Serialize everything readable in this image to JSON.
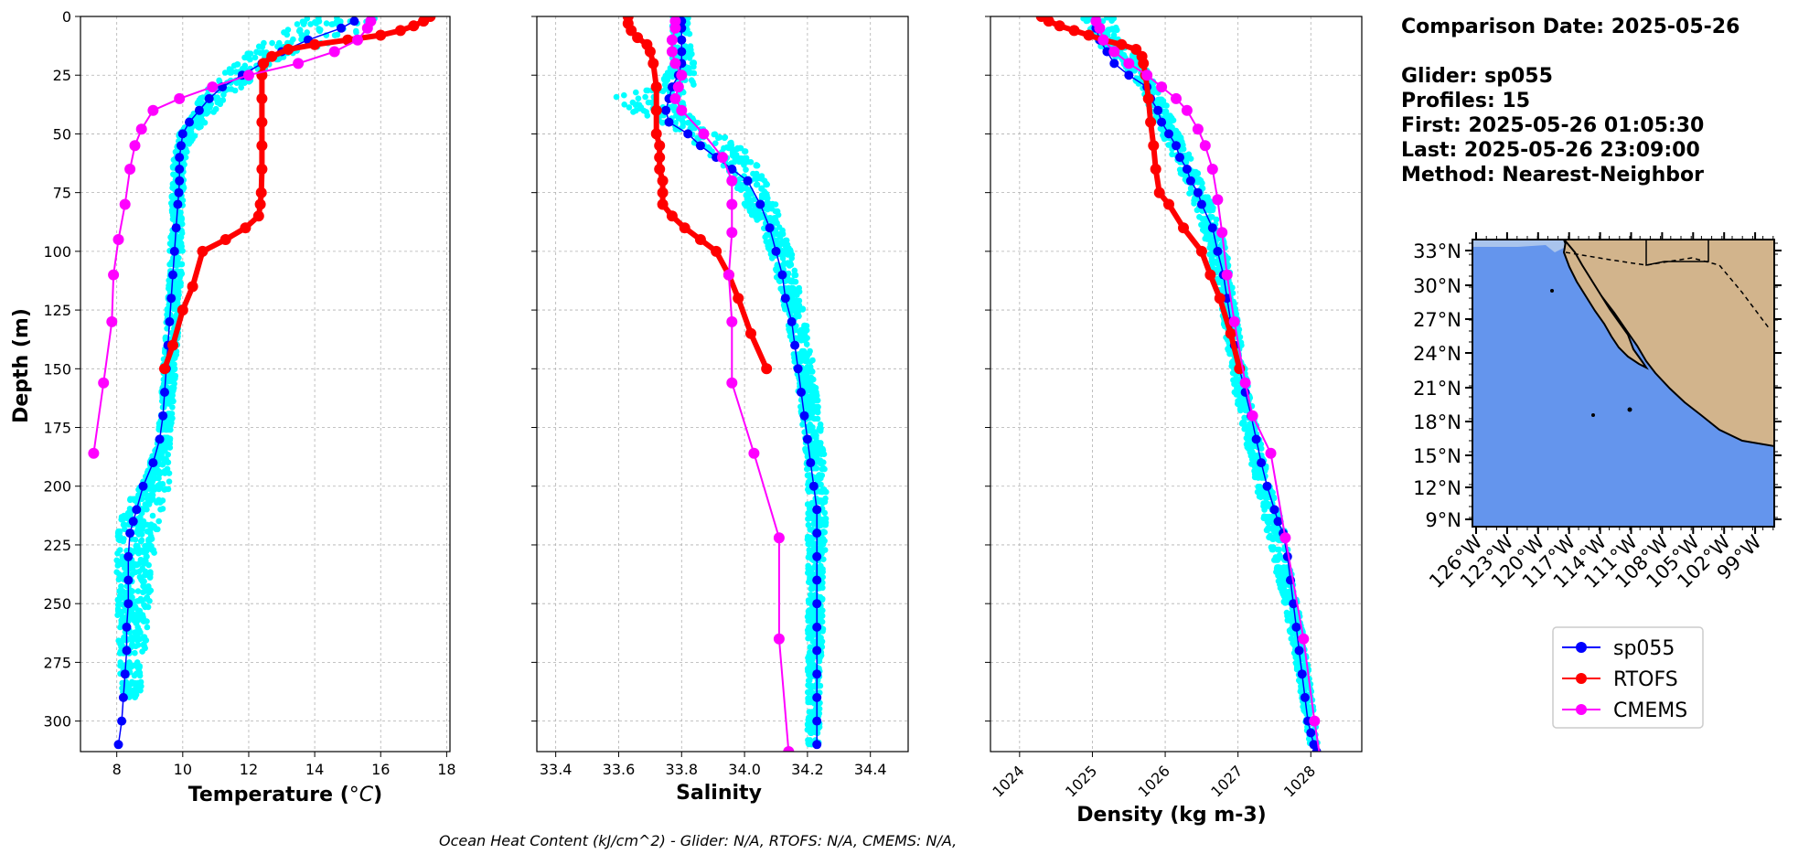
{
  "chart_data": [
    {
      "type": "line",
      "xlabel": "Temperature (°C)",
      "ylabel": "Depth (m)",
      "xlim": [
        6.9,
        18.1
      ],
      "ylim": [
        313,
        0
      ],
      "xticks": [
        8,
        10,
        12,
        14,
        16,
        18
      ],
      "yticks": [
        0,
        25,
        50,
        75,
        100,
        125,
        150,
        175,
        200,
        225,
        250,
        275,
        300
      ],
      "grid": true,
      "scatter": {
        "name": "sp055 profiles",
        "color": "#00ffff",
        "bands": [
          [
            0,
            13.8,
            15.9
          ],
          [
            5,
            13.0,
            15.8
          ],
          [
            10,
            12.6,
            14.8
          ],
          [
            15,
            12.0,
            13.6
          ],
          [
            20,
            11.6,
            12.8
          ],
          [
            25,
            11.2,
            12.3
          ],
          [
            30,
            10.8,
            11.8
          ],
          [
            35,
            10.5,
            11.4
          ],
          [
            40,
            10.3,
            11.0
          ],
          [
            45,
            10.1,
            10.7
          ],
          [
            50,
            9.9,
            10.4
          ],
          [
            55,
            9.8,
            10.2
          ],
          [
            60,
            9.7,
            10.1
          ],
          [
            70,
            9.7,
            10.05
          ],
          [
            80,
            9.65,
            10.0
          ],
          [
            90,
            9.65,
            10.0
          ],
          [
            100,
            9.6,
            10.0
          ],
          [
            120,
            9.55,
            9.95
          ],
          [
            140,
            9.45,
            9.85
          ],
          [
            160,
            9.35,
            9.75
          ],
          [
            180,
            9.25,
            9.65
          ],
          [
            190,
            9.0,
            9.6
          ],
          [
            200,
            8.6,
            9.6
          ],
          [
            210,
            8.2,
            9.4
          ],
          [
            220,
            8.0,
            9.25
          ],
          [
            235,
            8.0,
            9.1
          ],
          [
            250,
            8.0,
            9.0
          ],
          [
            265,
            8.05,
            8.9
          ],
          [
            280,
            8.1,
            8.8
          ],
          [
            290,
            8.2,
            8.7
          ]
        ]
      },
      "series": [
        {
          "name": "sp055",
          "color": "#0000ff",
          "lw": 1.5,
          "ms": 5,
          "x": [
            15.2,
            14.8,
            13.8,
            13.0,
            12.4,
            11.8,
            11.2,
            10.8,
            10.5,
            10.2,
            10.0,
            9.95,
            9.9,
            9.9,
            9.9,
            9.88,
            9.85,
            9.8,
            9.75,
            9.7,
            9.65,
            9.6,
            9.55,
            9.5,
            9.45,
            9.4,
            9.3,
            9.1,
            8.8,
            8.6,
            8.5,
            8.4,
            8.35,
            8.35,
            8.35,
            8.3,
            8.3,
            8.25,
            8.2,
            8.15,
            8.05
          ],
          "y": [
            2,
            5,
            10,
            15,
            20,
            25,
            30,
            35,
            40,
            45,
            50,
            55,
            60,
            65,
            70,
            75,
            80,
            90,
            100,
            110,
            120,
            130,
            140,
            150,
            160,
            170,
            180,
            190,
            200,
            210,
            215,
            220,
            230,
            240,
            250,
            260,
            270,
            280,
            290,
            300,
            310
          ]
        },
        {
          "name": "RTOFS",
          "color": "#ff0000",
          "lw": 6,
          "ms": 6,
          "x": [
            17.5,
            17.3,
            17.0,
            16.6,
            16.0,
            15.0,
            14.0,
            13.2,
            12.7,
            12.45,
            12.4,
            12.4,
            12.4,
            12.4,
            12.4,
            12.38,
            12.35,
            12.3,
            11.9,
            11.3,
            10.6,
            10.3,
            10.0,
            9.7,
            9.45
          ],
          "y": [
            0,
            2,
            4,
            6,
            8,
            10,
            12,
            14,
            17,
            20,
            25,
            35,
            45,
            55,
            65,
            75,
            80,
            85,
            90,
            95,
            100,
            115,
            125,
            140,
            150
          ]
        },
        {
          "name": "CMEMS",
          "color": "#ff00ff",
          "lw": 2,
          "ms": 6,
          "x": [
            15.7,
            15.6,
            15.3,
            14.6,
            13.5,
            12.0,
            10.9,
            9.9,
            9.1,
            8.75,
            8.55,
            8.4,
            8.25,
            8.05,
            7.9,
            7.85,
            7.6,
            7.3
          ],
          "y": [
            2,
            5,
            10,
            15,
            20,
            25,
            30,
            35,
            40,
            48,
            55,
            65,
            80,
            95,
            110,
            130,
            156,
            186
          ]
        }
      ]
    },
    {
      "type": "line",
      "xlabel": "Salinity",
      "xlim": [
        33.34,
        34.52
      ],
      "ylim": [
        313,
        0
      ],
      "xticks": [
        33.4,
        33.6,
        33.8,
        34.0,
        34.2,
        34.4
      ],
      "xticklabels": [
        "33.4",
        "33.6",
        "33.8",
        "34.0",
        "34.2",
        "34.4"
      ],
      "grid": true,
      "scatter": {
        "name": "sp055 profiles",
        "color": "#00ffff",
        "bands": [
          [
            0,
            33.77,
            33.82
          ],
          [
            10,
            33.77,
            33.83
          ],
          [
            20,
            33.77,
            33.84
          ],
          [
            30,
            33.73,
            33.84
          ],
          [
            35,
            33.57,
            33.8
          ],
          [
            40,
            33.62,
            33.82
          ],
          [
            45,
            33.73,
            33.86
          ],
          [
            50,
            33.78,
            33.92
          ],
          [
            55,
            33.84,
            34.0
          ],
          [
            60,
            33.9,
            34.03
          ],
          [
            70,
            33.96,
            34.07
          ],
          [
            80,
            34.0,
            34.1
          ],
          [
            90,
            34.05,
            34.12
          ],
          [
            100,
            34.08,
            34.15
          ],
          [
            120,
            34.12,
            34.18
          ],
          [
            140,
            34.15,
            34.21
          ],
          [
            160,
            34.17,
            34.23
          ],
          [
            180,
            34.19,
            34.25
          ],
          [
            200,
            34.2,
            34.26
          ],
          [
            220,
            34.2,
            34.26
          ],
          [
            240,
            34.2,
            34.25
          ],
          [
            260,
            34.2,
            34.25
          ],
          [
            290,
            34.2,
            34.24
          ],
          [
            310,
            34.2,
            34.24
          ]
        ]
      },
      "series": [
        {
          "name": "sp055",
          "color": "#0000ff",
          "lw": 1.5,
          "ms": 5,
          "x": [
            33.8,
            33.8,
            33.8,
            33.8,
            33.8,
            33.79,
            33.77,
            33.76,
            33.75,
            33.76,
            33.82,
            33.86,
            33.91,
            33.96,
            34.01,
            34.05,
            34.08,
            34.1,
            34.12,
            34.13,
            34.15,
            34.16,
            34.17,
            34.18,
            34.19,
            34.2,
            34.21,
            34.22,
            34.23,
            34.23,
            34.23,
            34.23,
            34.23,
            34.23,
            34.23,
            34.23,
            34.23,
            34.23,
            34.23
          ],
          "y": [
            2,
            5,
            10,
            15,
            20,
            25,
            30,
            35,
            40,
            45,
            50,
            55,
            60,
            65,
            70,
            80,
            90,
            100,
            110,
            120,
            130,
            140,
            150,
            160,
            170,
            180,
            190,
            200,
            210,
            220,
            230,
            240,
            250,
            260,
            270,
            280,
            290,
            300,
            310
          ]
        },
        {
          "name": "RTOFS",
          "color": "#ff0000",
          "lw": 6,
          "ms": 6,
          "x": [
            33.63,
            33.63,
            33.64,
            33.66,
            33.69,
            33.7,
            33.71,
            33.72,
            33.72,
            33.72,
            33.73,
            33.73,
            33.73,
            33.74,
            33.74,
            33.74,
            33.77,
            33.81,
            33.86,
            33.91,
            33.95,
            33.98,
            34.02,
            34.07
          ],
          "y": [
            0,
            3,
            6,
            9,
            12,
            15,
            20,
            30,
            40,
            50,
            55,
            60,
            65,
            70,
            75,
            80,
            85,
            90,
            95,
            100,
            110,
            120,
            135,
            150
          ]
        },
        {
          "name": "CMEMS",
          "color": "#ff00ff",
          "lw": 2,
          "ms": 6,
          "x": [
            33.78,
            33.78,
            33.77,
            33.77,
            33.78,
            33.8,
            33.79,
            33.78,
            33.8,
            33.87,
            33.93,
            33.96,
            33.96,
            33.96,
            33.95,
            33.96,
            33.96,
            34.03,
            34.11,
            34.11,
            34.14,
            34.17
          ],
          "y": [
            2,
            5,
            10,
            15,
            20,
            25,
            30,
            35,
            40,
            50,
            60,
            70,
            80,
            92,
            110,
            130,
            156,
            186,
            222,
            265,
            313,
            330
          ]
        }
      ]
    },
    {
      "type": "line",
      "xlabel": "Density (kg m-3)",
      "xlim": [
        1023.6,
        1028.7
      ],
      "ylim": [
        313,
        0
      ],
      "xticks": [
        1024,
        1025,
        1026,
        1027,
        1028
      ],
      "grid": true,
      "scatter": {
        "name": "sp055 profiles",
        "color": "#00ffff",
        "bands": [
          [
            0,
            1024.85,
            1025.3
          ],
          [
            10,
            1025.0,
            1025.4
          ],
          [
            20,
            1025.4,
            1025.7
          ],
          [
            30,
            1025.65,
            1025.9
          ],
          [
            40,
            1025.8,
            1026.05
          ],
          [
            50,
            1025.95,
            1026.2
          ],
          [
            60,
            1026.1,
            1026.35
          ],
          [
            70,
            1026.25,
            1026.5
          ],
          [
            80,
            1026.4,
            1026.65
          ],
          [
            100,
            1026.6,
            1026.85
          ],
          [
            120,
            1026.75,
            1026.95
          ],
          [
            140,
            1026.85,
            1027.05
          ],
          [
            160,
            1026.95,
            1027.15
          ],
          [
            180,
            1027.1,
            1027.3
          ],
          [
            200,
            1027.25,
            1027.45
          ],
          [
            220,
            1027.4,
            1027.65
          ],
          [
            240,
            1027.55,
            1027.75
          ],
          [
            260,
            1027.7,
            1027.88
          ],
          [
            280,
            1027.82,
            1027.98
          ],
          [
            300,
            1027.92,
            1028.06
          ],
          [
            310,
            1027.97,
            1028.1
          ]
        ]
      },
      "series": [
        {
          "name": "sp055",
          "color": "#0000ff",
          "lw": 1.5,
          "ms": 5,
          "x": [
            1025.05,
            1025.1,
            1025.2,
            1025.3,
            1025.5,
            1025.75,
            1025.8,
            1025.9,
            1025.95,
            1026.05,
            1026.15,
            1026.2,
            1026.3,
            1026.35,
            1026.45,
            1026.5,
            1026.65,
            1026.72,
            1026.8,
            1026.85,
            1026.9,
            1026.95,
            1027.02,
            1027.1,
            1027.18,
            1027.25,
            1027.32,
            1027.4,
            1027.5,
            1027.55,
            1027.62,
            1027.68,
            1027.72,
            1027.76,
            1027.8,
            1027.84,
            1027.88,
            1027.92,
            1027.96,
            1028.0,
            1028.04,
            1028.08
          ],
          "y": [
            5,
            10,
            15,
            20,
            25,
            30,
            35,
            40,
            45,
            50,
            55,
            60,
            65,
            70,
            75,
            80,
            90,
            100,
            110,
            120,
            130,
            140,
            150,
            160,
            170,
            180,
            190,
            200,
            210,
            215,
            220,
            230,
            240,
            250,
            260,
            270,
            280,
            290,
            300,
            305,
            310,
            313
          ]
        },
        {
          "name": "RTOFS",
          "color": "#ff0000",
          "lw": 6,
          "ms": 6,
          "x": [
            1024.3,
            1024.4,
            1024.55,
            1024.75,
            1024.95,
            1025.15,
            1025.4,
            1025.6,
            1025.68,
            1025.7,
            1025.73,
            1025.77,
            1025.8,
            1025.84,
            1025.87,
            1025.92,
            1026.05,
            1026.25,
            1026.5,
            1026.62,
            1026.75,
            1026.9,
            1027.02
          ],
          "y": [
            0,
            2,
            4,
            6,
            8,
            10,
            12,
            14,
            17,
            20,
            25,
            35,
            45,
            55,
            65,
            75,
            80,
            90,
            100,
            110,
            120,
            135,
            150
          ]
        },
        {
          "name": "CMEMS",
          "color": "#ff00ff",
          "lw": 2,
          "ms": 6,
          "x": [
            1025.05,
            1025.1,
            1025.15,
            1025.3,
            1025.5,
            1025.75,
            1025.95,
            1026.15,
            1026.3,
            1026.45,
            1026.55,
            1026.65,
            1026.72,
            1026.78,
            1026.85,
            1026.95,
            1027.1,
            1027.2,
            1027.45,
            1027.65,
            1027.9,
            1028.05,
            1028.15
          ],
          "y": [
            2,
            5,
            10,
            15,
            20,
            25,
            30,
            35,
            40,
            48,
            55,
            65,
            78,
            92,
            110,
            130,
            156,
            170,
            186,
            222,
            265,
            300,
            320
          ]
        }
      ]
    }
  ],
  "info": {
    "comparison": "Comparison Date: 2025-05-26",
    "glider": "Glider: sp055",
    "profiles": "Profiles: 15",
    "first": "First: 2025-05-26 01:05:30",
    "last": "Last: 2025-05-26 23:09:00",
    "method": "Method: Nearest-Neighbor"
  },
  "map": {
    "lat_ticks": [
      "33°N",
      "30°N",
      "27°N",
      "24°N",
      "21°N",
      "18°N",
      "15°N",
      "12°N",
      "9°N"
    ],
    "lon_ticks": [
      "126°W",
      "123°W",
      "120°W",
      "117°W",
      "114°W",
      "111°W",
      "108°W",
      "105°W",
      "102°W",
      "99°W"
    ],
    "ocean_color": "#6495ed",
    "land_color": "#d2b48c"
  },
  "legend": [
    {
      "label": "sp055",
      "color": "#0000ff"
    },
    {
      "label": "RTOFS",
      "color": "#ff0000"
    },
    {
      "label": "CMEMS",
      "color": "#ff00ff"
    }
  ],
  "footer": "Ocean Heat Content (kJ/cm^2) - Glider: N/A,  RTOFS: N/A,  CMEMS: N/A,"
}
